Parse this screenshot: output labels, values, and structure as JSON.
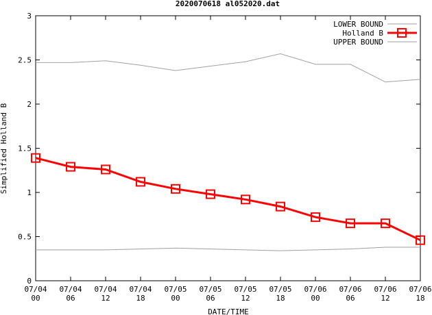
{
  "chart_data": {
    "type": "line",
    "title": "2020070618 al052020.dat",
    "xlabel": "DATE/TIME",
    "ylabel": "Simplified Holland B",
    "ylim": [
      0,
      3
    ],
    "yticks": [
      "0",
      "0.5",
      "1",
      "1.5",
      "2",
      "2.5",
      "3"
    ],
    "ytick_values": [
      0,
      0.5,
      1,
      1.5,
      2,
      2.5,
      3
    ],
    "categories": [
      [
        "07/04",
        "00"
      ],
      [
        "07/04",
        "06"
      ],
      [
        "07/04",
        "12"
      ],
      [
        "07/04",
        "18"
      ],
      [
        "07/05",
        "00"
      ],
      [
        "07/05",
        "06"
      ],
      [
        "07/05",
        "12"
      ],
      [
        "07/05",
        "18"
      ],
      [
        "07/06",
        "00"
      ],
      [
        "07/06",
        "06"
      ],
      [
        "07/06",
        "12"
      ],
      [
        "07/06",
        "18"
      ]
    ],
    "legend_position": "top-right",
    "grid": false,
    "series": [
      {
        "name": "LOWER BOUND",
        "color": "#a0a0a0",
        "marker": "none",
        "values": [
          0.35,
          0.35,
          0.35,
          0.36,
          0.37,
          0.36,
          0.35,
          0.34,
          0.35,
          0.36,
          0.38,
          0.38
        ]
      },
      {
        "name": "Holland B",
        "color": "#ff0000",
        "marker": "square",
        "values": [
          1.39,
          1.29,
          1.26,
          1.12,
          1.04,
          0.98,
          0.92,
          0.84,
          0.72,
          0.65,
          0.65,
          0.46
        ]
      },
      {
        "name": "UPPER BOUND",
        "color": "#a0a0a0",
        "marker": "none",
        "values": [
          2.47,
          2.47,
          2.49,
          2.44,
          2.38,
          2.43,
          2.48,
          2.57,
          2.45,
          2.45,
          2.25,
          2.28
        ]
      }
    ]
  }
}
